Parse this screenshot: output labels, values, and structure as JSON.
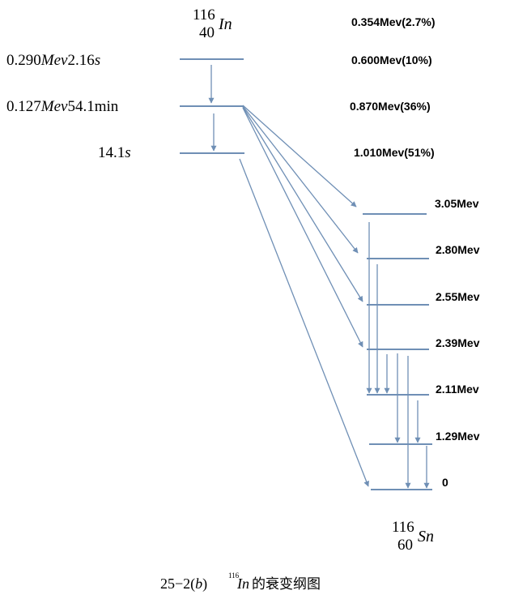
{
  "parent": {
    "mass": "116",
    "atomic": "40",
    "symbol": "In",
    "levels": [
      {
        "energy": "0.290",
        "unit": "Mev",
        "halflife": "2.16",
        "hl_unit": "s"
      },
      {
        "energy": "0.127",
        "unit": "Mev",
        "halflife": "54.1",
        "hl_unit": "min"
      },
      {
        "energy": "",
        "unit": "",
        "halflife": "14.1",
        "hl_unit": "s"
      }
    ]
  },
  "beta_branches": [
    {
      "label": "0.354Mev(2.7%)"
    },
    {
      "label": "0.600Mev(10%)"
    },
    {
      "label": "0.870Mev(36%)"
    },
    {
      "label": "1.010Mev(51%)"
    }
  ],
  "daughter": {
    "mass": "116",
    "atomic": "60",
    "symbol": "Sn",
    "levels": [
      {
        "label": "3.05Mev"
      },
      {
        "label": "2.80Mev"
      },
      {
        "label": "2.55Mev"
      },
      {
        "label": "2.39Mev"
      },
      {
        "label": "2.11Mev"
      },
      {
        "label": "1.29Mev"
      },
      {
        "label": "0"
      }
    ]
  },
  "caption": {
    "prefix": "25−",
    "number": "2(",
    "letter": "b",
    "close": ")",
    "mass": "116",
    "symbol": "In",
    "suffix": "的衰变纲图"
  },
  "colors": {
    "line": "#6f8fb5"
  }
}
